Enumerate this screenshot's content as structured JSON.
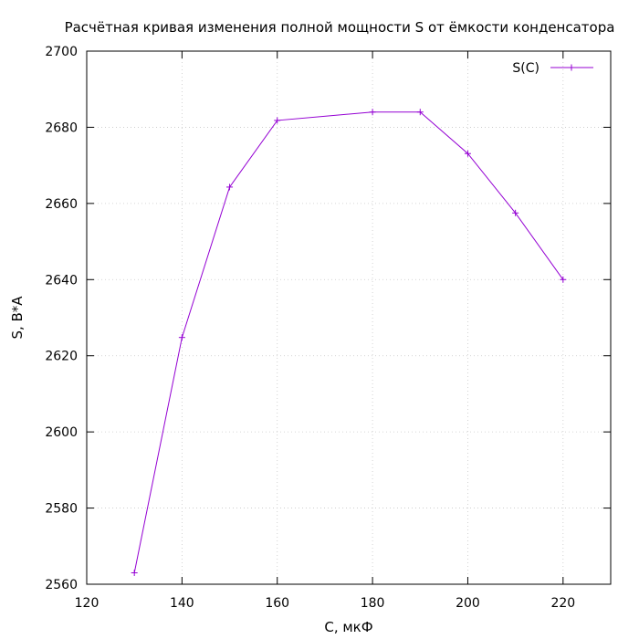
{
  "chart_data": {
    "type": "line",
    "title": "Расчётная кривая изменения полной мощности S от ёмкости конденсатора",
    "xlabel": "C, мкФ",
    "ylabel": "S, В*А",
    "xlim": [
      120,
      230
    ],
    "ylim": [
      2560,
      2700
    ],
    "xticks": [
      120,
      140,
      160,
      180,
      200,
      220
    ],
    "yticks": [
      2560,
      2580,
      2600,
      2620,
      2640,
      2660,
      2680,
      2700
    ],
    "grid": true,
    "legend_position": "top-right",
    "series": [
      {
        "name": "S(C)",
        "color": "#9400d3",
        "marker": "plus",
        "x": [
          130,
          140,
          150,
          160,
          180,
          190,
          200,
          210,
          220
        ],
        "y": [
          2563,
          2624.8,
          2664.3,
          2681.8,
          2684,
          2684,
          2673.1,
          2657.5,
          2640
        ]
      }
    ]
  }
}
